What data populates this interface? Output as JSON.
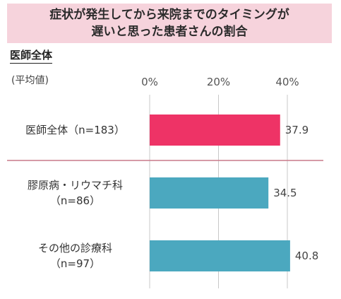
{
  "title": {
    "line1": "症状が発生してから来院までのタイミングが",
    "line2": "遅いと思った患者さんの割合"
  },
  "section_heading": "医師全体",
  "stat_label": "(平均値)",
  "colors": {
    "title_bg": "#f6d3dc",
    "overall_bar": "#ee3366",
    "group_bar": "#4ba8bf",
    "divider": "#c97a8a",
    "grid": "#c8c8c8"
  },
  "chart_data": {
    "type": "bar",
    "orientation": "horizontal",
    "title": "症状が発生してから来院までのタイミングが遅いと思った患者さんの割合",
    "xlim": [
      0,
      40
    ],
    "x_ticks": [
      "0%",
      "20%",
      "40%"
    ],
    "x_tick_values": [
      0,
      20,
      40
    ],
    "categories": [
      {
        "lines": [
          "医師全体（n=183）"
        ],
        "value": 37.9,
        "value_label": "37.9",
        "color": "#ee3366"
      },
      {
        "lines": [
          "膠原病・リウマチ科",
          "（n=86）"
        ],
        "value": 34.5,
        "value_label": "34.5",
        "color": "#4ba8bf"
      },
      {
        "lines": [
          "その他の診療科",
          "（n=97）"
        ],
        "value": 40.8,
        "value_label": "40.8",
        "color": "#4ba8bf"
      }
    ],
    "grid": true,
    "legend": "none"
  }
}
